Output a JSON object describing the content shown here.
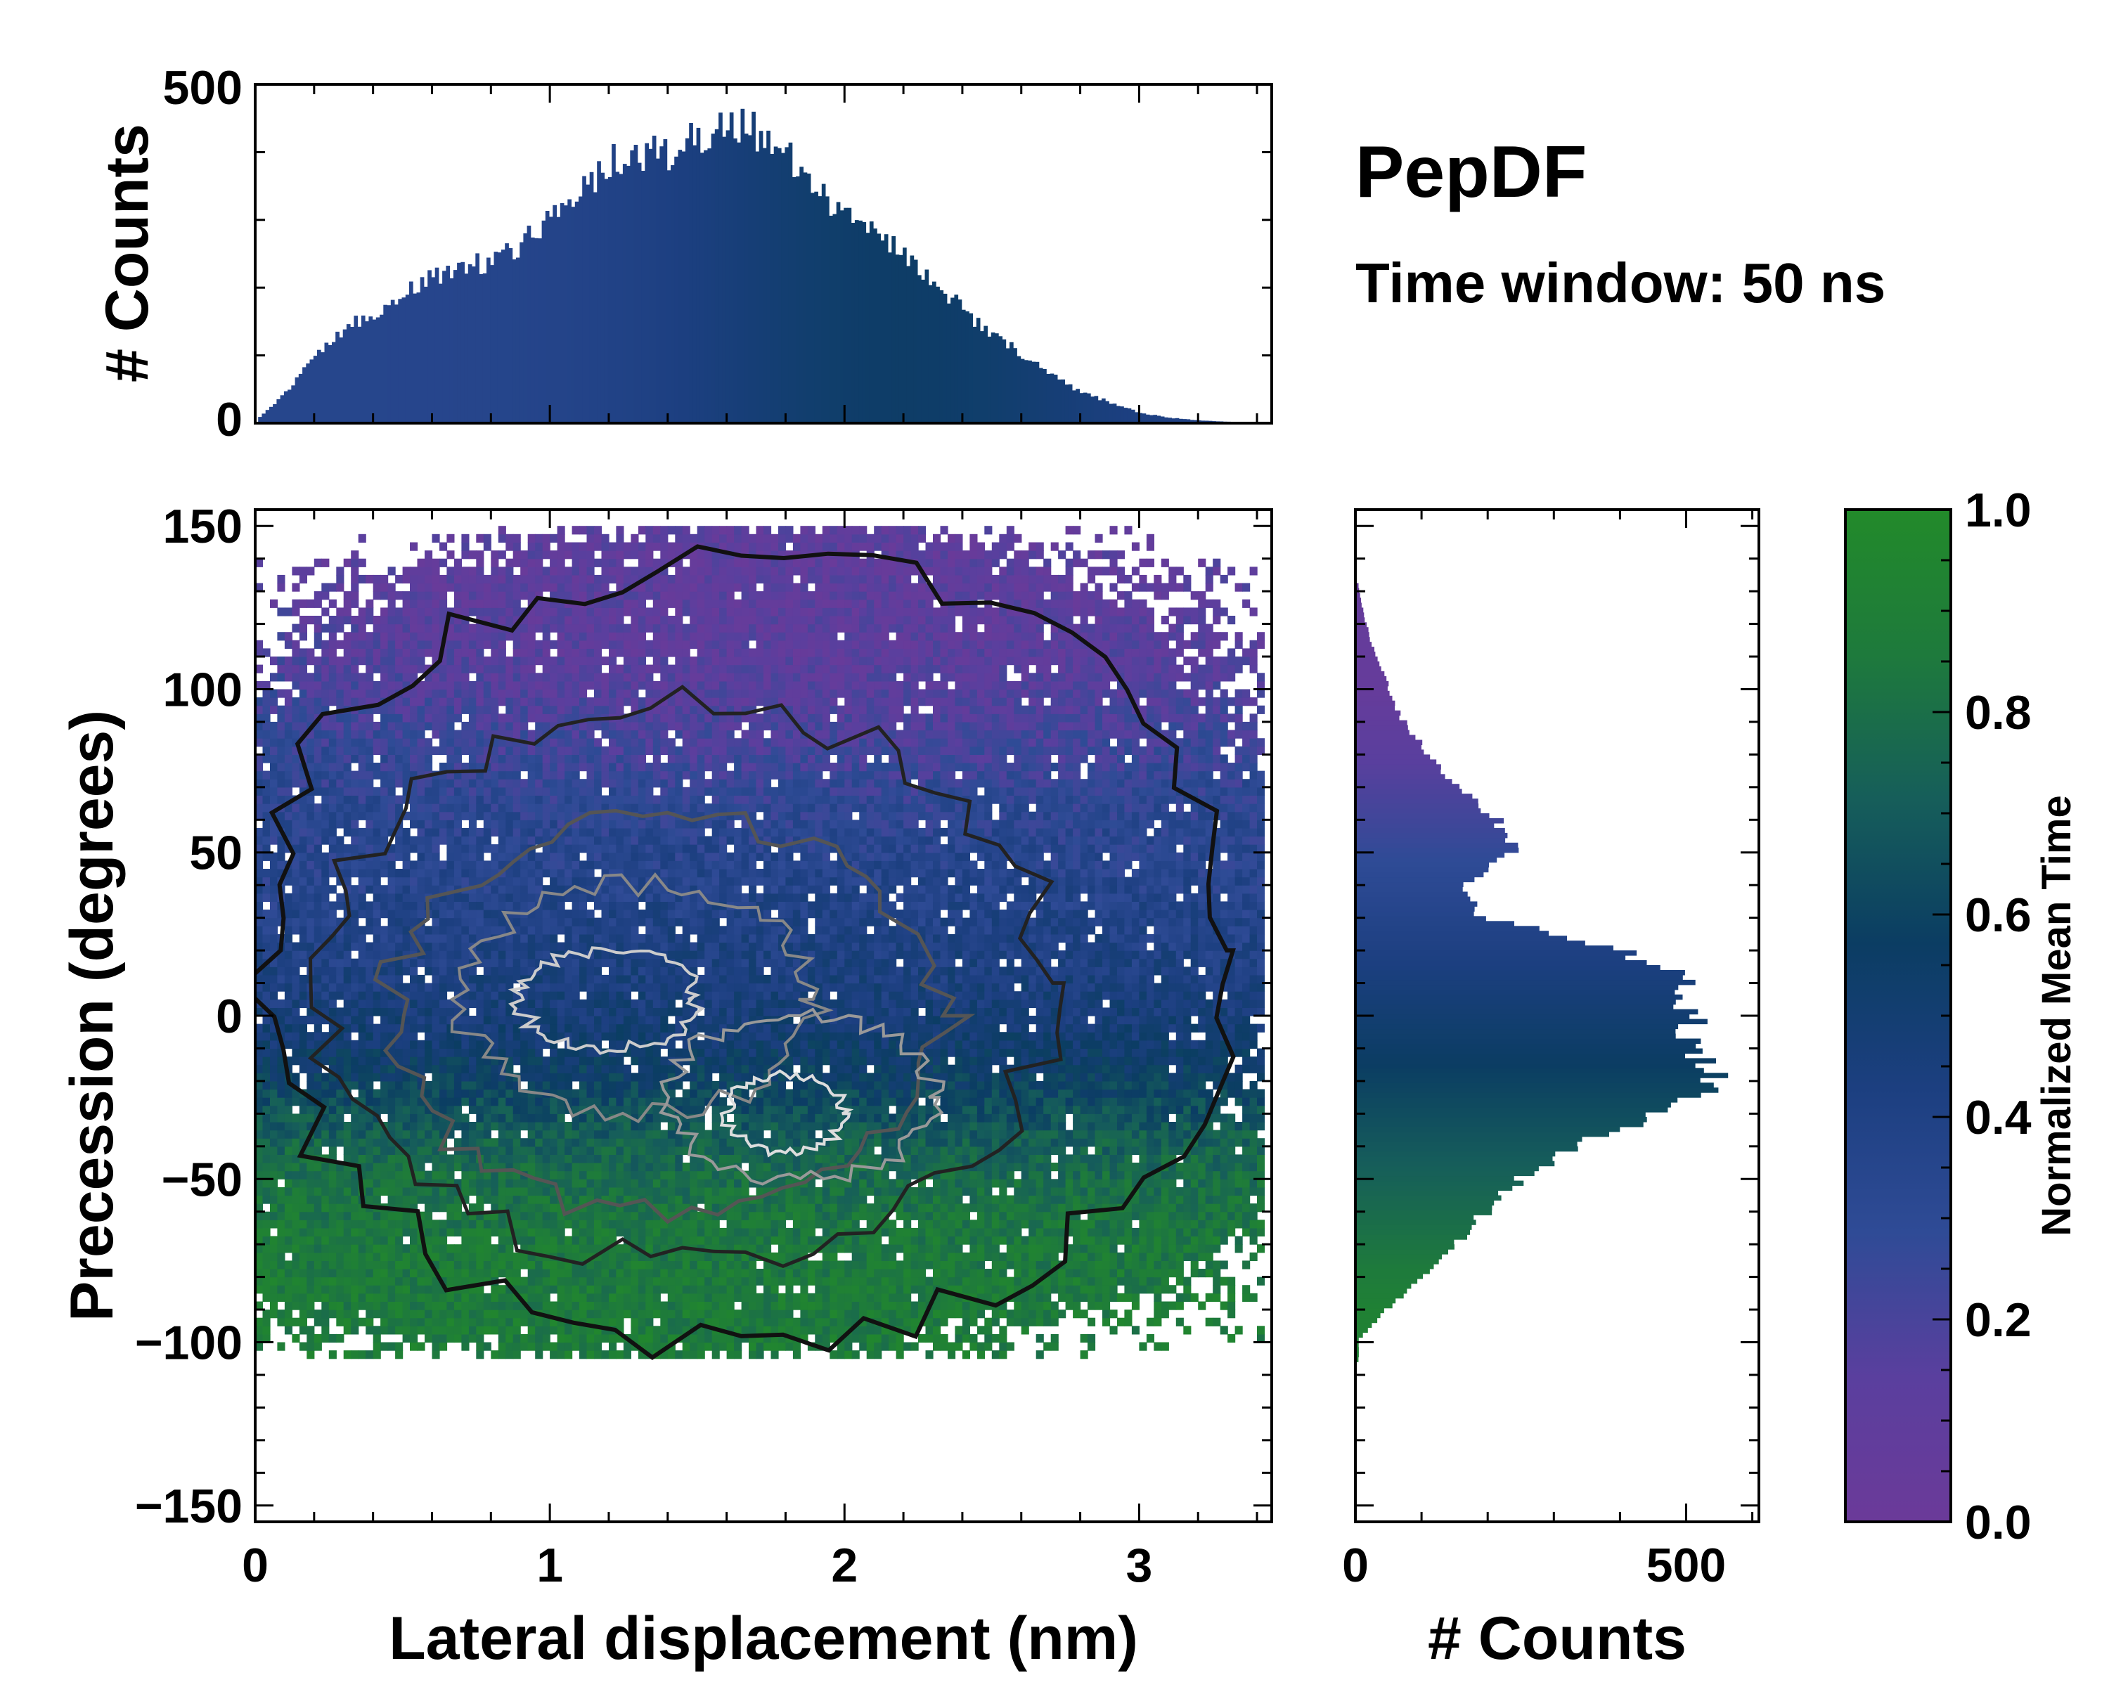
{
  "figure": {
    "title": "PepDF",
    "subtitle": "Time window: 50 ns"
  },
  "colors": {
    "colormap": [
      "#6b3a99",
      "#5a3f9e",
      "#2f4b96",
      "#1c3f80",
      "#0b3d63",
      "#165e5a",
      "#1e7a3c",
      "#228a2a"
    ],
    "frame": "#000000"
  },
  "chart_data": [
    {
      "type": "heatmap",
      "name": "joint-distribution",
      "title": "",
      "xlabel": "Lateral displacement (nm)",
      "ylabel": "Precession (degrees)",
      "xlim": [
        0,
        3.45
      ],
      "ylim": [
        -155,
        155
      ],
      "xticks": [
        0,
        1,
        2,
        3
      ],
      "xtick_labels": [
        "0",
        "1",
        "2",
        "3"
      ],
      "yticks": [
        150,
        100,
        50,
        0,
        -50,
        -100,
        -150
      ],
      "ytick_labels": [
        "150",
        "100",
        "50",
        "0",
        "−50",
        "−100",
        "−150"
      ],
      "color_meaning": "Normalized Mean Time",
      "regions": [
        {
          "description": "early (purple) cluster",
          "x_center": 1.7,
          "y_center": 105,
          "x_spread": 0.8,
          "y_spread": 25,
          "mean_time": 0.1
        },
        {
          "description": "intermediate (blue) band",
          "x_center": 1.3,
          "y_center": 45,
          "x_spread": 1.3,
          "y_spread": 30,
          "mean_time": 0.3
        },
        {
          "description": "main density core",
          "x_center": 1.5,
          "y_center": 0,
          "x_spread": 1.0,
          "y_spread": 35,
          "mean_time": 0.5
        },
        {
          "description": "late (green) cluster",
          "x_center": 1.4,
          "y_center": -60,
          "x_spread": 1.1,
          "y_spread": 25,
          "mean_time": 0.9
        }
      ],
      "contours": "density contours, white/grey at highest density near (1.2, 5) and (1.8, -30), black outer boundary"
    },
    {
      "type": "bar",
      "name": "x-marginal",
      "ylabel": "# Counts",
      "xlim": [
        0,
        3.45
      ],
      "ylim": [
        0,
        500
      ],
      "yticks": [
        0,
        500
      ],
      "ytick_labels": [
        "0",
        "500"
      ],
      "x": [
        0.0,
        0.1,
        0.2,
        0.3,
        0.4,
        0.5,
        0.6,
        0.7,
        0.8,
        0.9,
        1.0,
        1.1,
        1.2,
        1.3,
        1.4,
        1.5,
        1.6,
        1.7,
        1.8,
        1.9,
        2.0,
        2.1,
        2.2,
        2.3,
        2.4,
        2.5,
        2.6,
        2.7,
        2.8,
        2.9,
        3.0,
        3.1,
        3.2,
        3.3,
        3.4
      ],
      "values": [
        5,
        45,
        100,
        140,
        165,
        190,
        215,
        230,
        240,
        265,
        300,
        345,
        385,
        395,
        400,
        420,
        440,
        430,
        395,
        345,
        310,
        280,
        250,
        210,
        165,
        130,
        100,
        70,
        45,
        30,
        15,
        8,
        4,
        2,
        0
      ]
    },
    {
      "type": "bar",
      "orientation": "horizontal",
      "name": "y-marginal",
      "xlabel": "# Counts",
      "xlim": [
        0,
        610
      ],
      "xticks": [
        0,
        500
      ],
      "xtick_labels": [
        "0",
        "500"
      ],
      "y": [
        130,
        120,
        110,
        100,
        90,
        80,
        70,
        60,
        50,
        40,
        30,
        20,
        10,
        0,
        -10,
        -20,
        -30,
        -40,
        -50,
        -60,
        -70,
        -80,
        -90,
        -100
      ],
      "values": [
        5,
        15,
        30,
        50,
        70,
        110,
        150,
        210,
        240,
        170,
        180,
        390,
        500,
        510,
        500,
        550,
        470,
        340,
        250,
        200,
        155,
        110,
        50,
        5
      ]
    },
    {
      "type": "colorbar",
      "name": "colorbar",
      "label": "Normalized Mean Time",
      "range": [
        0,
        1
      ],
      "ticks": [
        0.0,
        0.2,
        0.4,
        0.6,
        0.8,
        1.0
      ],
      "tick_labels": [
        "0.0",
        "0.2",
        "0.4",
        "0.6",
        "0.8",
        "1.0"
      ]
    }
  ]
}
